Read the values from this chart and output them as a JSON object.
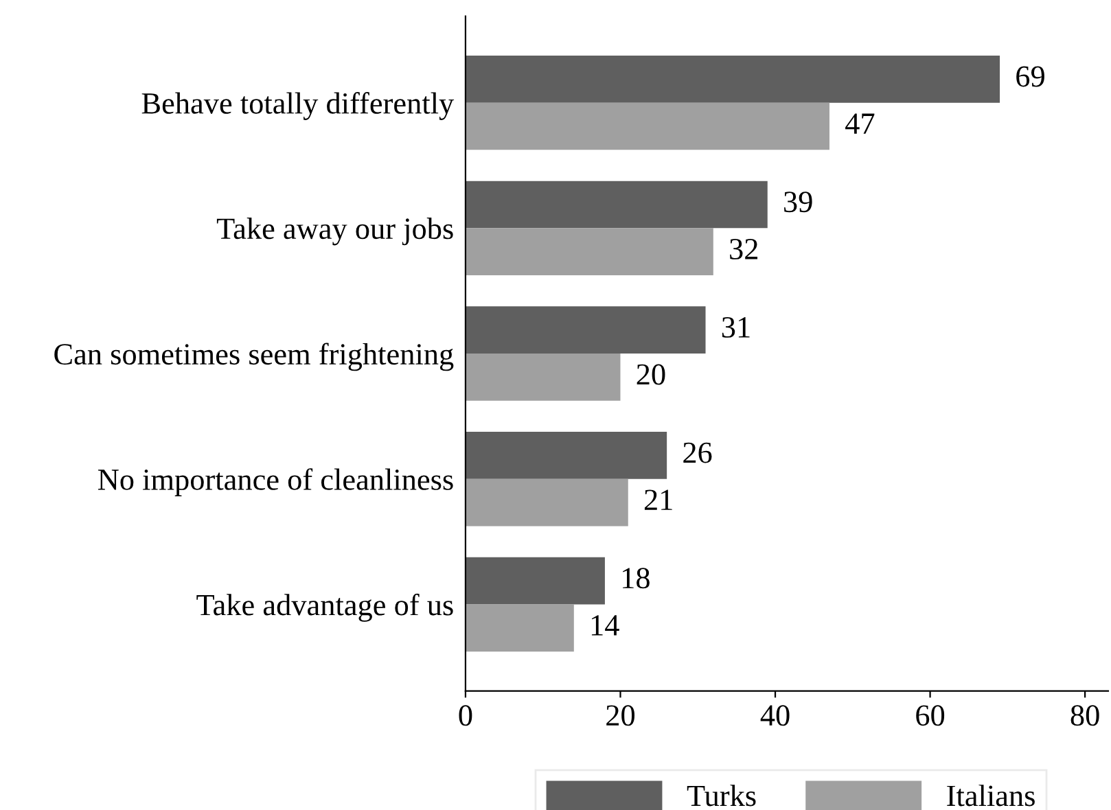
{
  "chart_data": {
    "type": "bar",
    "orientation": "horizontal",
    "categories": [
      "Behave totally differently",
      "Take away our jobs",
      "Can sometimes seem frightening",
      "No importance of cleanliness",
      "Take advantage of us"
    ],
    "series": [
      {
        "name": "Turks",
        "color": "#5f5f5f",
        "values": [
          69,
          39,
          31,
          26,
          18
        ]
      },
      {
        "name": "Italians",
        "color": "#a0a0a0",
        "values": [
          47,
          32,
          20,
          21,
          14
        ]
      }
    ],
    "xlim": [
      0,
      83
    ],
    "xticks": [
      0,
      20,
      40,
      60,
      80
    ],
    "grid": false,
    "legend": "bottom",
    "data_labels": true
  }
}
